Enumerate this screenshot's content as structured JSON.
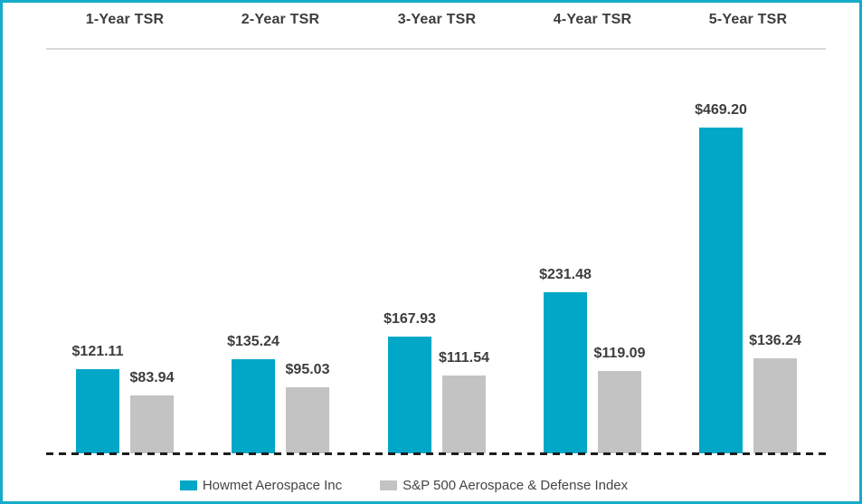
{
  "frame": {
    "border_color": "#17abc9",
    "background": "#ffffff"
  },
  "chart_data": {
    "type": "bar",
    "categories": [
      "1-Year TSR",
      "2-Year TSR",
      "3-Year TSR",
      "4-Year TSR",
      "5-Year TSR"
    ],
    "series": [
      {
        "name": "Howmet Aerospace Inc",
        "color": "#00a7c6",
        "values": [
          121.11,
          135.24,
          167.93,
          231.48,
          469.2
        ],
        "labels": [
          "$121.11",
          "$135.24",
          "$167.93",
          "$231.48",
          "$469.20"
        ]
      },
      {
        "name": "S&P 500 Aerospace & Defense Index",
        "color": "#c3c3c3",
        "values": [
          83.94,
          95.03,
          111.54,
          119.09,
          136.24
        ],
        "labels": [
          "$83.94",
          "$95.03",
          "$111.54",
          "$119.09",
          "$136.24"
        ]
      }
    ],
    "value_prefix": "$",
    "ylim": [
      0,
      480
    ],
    "grid": false,
    "baseline_style": "dashed-black-zero-line",
    "legend_position": "bottom",
    "text_color": "#3d3d3d"
  },
  "legend": {
    "items": [
      {
        "label": "Howmet Aerospace Inc",
        "color": "#00a7c6"
      },
      {
        "label": "S&P 500 Aerospace & Defense Index",
        "color": "#c3c3c3"
      }
    ]
  }
}
